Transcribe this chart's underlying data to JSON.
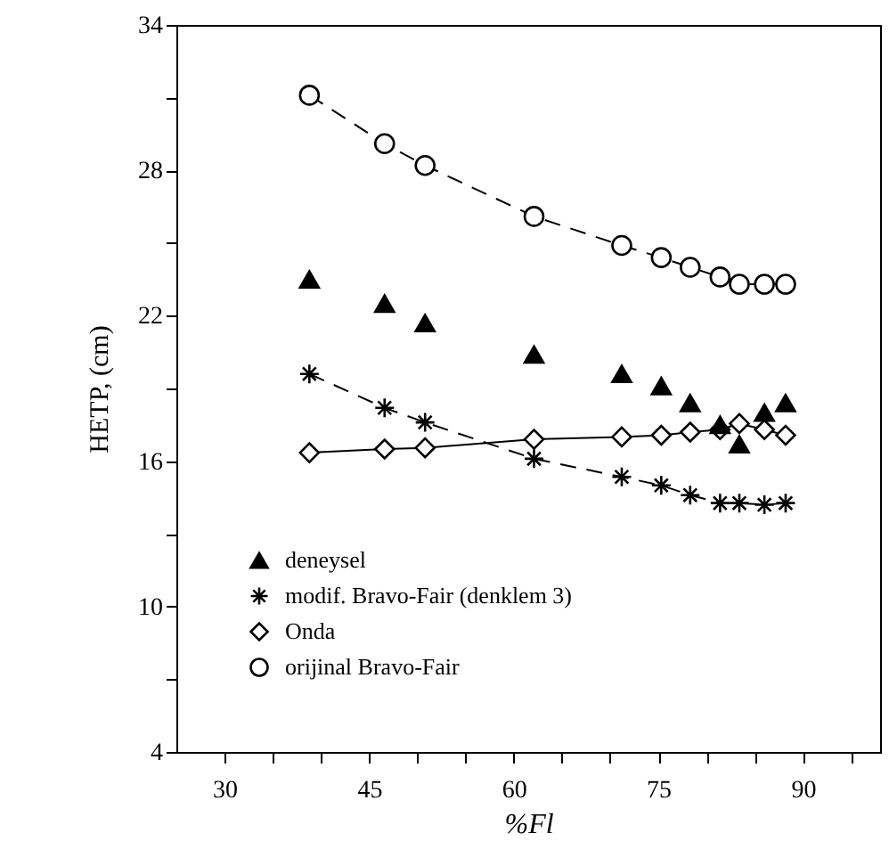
{
  "chart_data": {
    "type": "line",
    "xlabel": "%Fl",
    "ylabel": "HETP, (cm)",
    "x": [
      38.8,
      46.6,
      50.8,
      62.1,
      71.2,
      75.3,
      78.3,
      81.4,
      83.4,
      86.0,
      88.2
    ],
    "xlim": [
      25,
      98
    ],
    "ylim": [
      4,
      34
    ],
    "xticks": [
      30,
      {
        "value": 35,
        "label": null
      },
      {
        "value": 40,
        "label": null
      },
      45,
      {
        "value": 50,
        "label": null
      },
      {
        "value": 55,
        "label": null
      },
      60,
      {
        "value": 65,
        "label": null
      },
      {
        "value": 70,
        "label": null
      },
      75,
      {
        "value": 80,
        "label": null
      },
      {
        "value": 85,
        "label": null
      },
      90,
      {
        "value": 95,
        "label": null
      }
    ],
    "yticks": [
      4,
      {
        "value": 7,
        "label": null
      },
      10,
      {
        "value": 13,
        "label": null
      },
      16,
      {
        "value": 19,
        "label": null
      },
      22,
      {
        "value": 25,
        "label": null
      },
      28,
      {
        "value": 31,
        "label": null
      },
      34
    ],
    "grid": false,
    "legend": "bottom left",
    "series": [
      {
        "name": "deneysel",
        "type": "scatter",
        "color": "#000000",
        "marker": "triangle",
        "values": [
          23.5,
          22.5,
          21.7,
          20.4,
          19.6,
          19.1,
          18.4,
          17.5,
          16.7,
          18.0,
          18.4
        ]
      },
      {
        "name": "modif. Bravo-Fair (denklem 3)",
        "color": "#000000",
        "marker": "cross",
        "line_style": "dashed",
        "values": [
          19.6,
          18.2,
          17.6,
          16.1,
          15.35,
          15.0,
          14.6,
          14.27,
          14.27,
          14.2,
          14.27
        ]
      },
      {
        "name": "Onda",
        "color": "#000000",
        "marker": "diamond",
        "line_style": "solid",
        "values": [
          16.35,
          16.5,
          16.55,
          16.9,
          17.0,
          17.07,
          17.2,
          17.3,
          17.55,
          17.3,
          17.07
        ]
      },
      {
        "name": "orijinal Bravo-Fair",
        "color": "#000000",
        "marker": "circle",
        "line_style": "dashed",
        "values": [
          31.1,
          29.1,
          28.2,
          26.1,
          24.9,
          24.4,
          24.0,
          23.6,
          23.3,
          23.3,
          23.3
        ]
      }
    ]
  }
}
